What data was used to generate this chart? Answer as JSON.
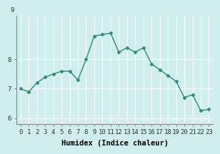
{
  "x": [
    0,
    1,
    2,
    3,
    4,
    5,
    6,
    7,
    8,
    9,
    10,
    11,
    12,
    13,
    14,
    15,
    16,
    17,
    18,
    19,
    20,
    21,
    22,
    23
  ],
  "y": [
    7.0,
    6.9,
    7.2,
    7.4,
    7.5,
    7.6,
    7.6,
    7.3,
    8.0,
    8.8,
    8.85,
    8.9,
    8.25,
    8.4,
    8.25,
    8.4,
    7.85,
    7.65,
    7.45,
    7.25,
    6.7,
    6.8,
    6.25,
    6.3
  ],
  "line_color": "#2e8b74",
  "marker": "D",
  "marker_size": 2.5,
  "bg_color": "#d0eeee",
  "grid_color": "#ffffff",
  "xlabel": "Humidex (Indice chaleur)",
  "ylim": [
    5.8,
    9.5
  ],
  "xlim": [
    -0.5,
    23.5
  ],
  "yticks": [
    6,
    7,
    8
  ],
  "ytick_labels": [
    "6",
    "7",
    "8"
  ],
  "top_label": "9",
  "xtick_labels": [
    "0",
    "1",
    "2",
    "3",
    "4",
    "5",
    "6",
    "7",
    "8",
    "9",
    "10",
    "11",
    "12",
    "13",
    "14",
    "15",
    "16",
    "17",
    "18",
    "19",
    "20",
    "21",
    "22",
    "23"
  ],
  "tick_fontsize": 6.5,
  "xlabel_fontsize": 7.5,
  "line_width": 1.0
}
